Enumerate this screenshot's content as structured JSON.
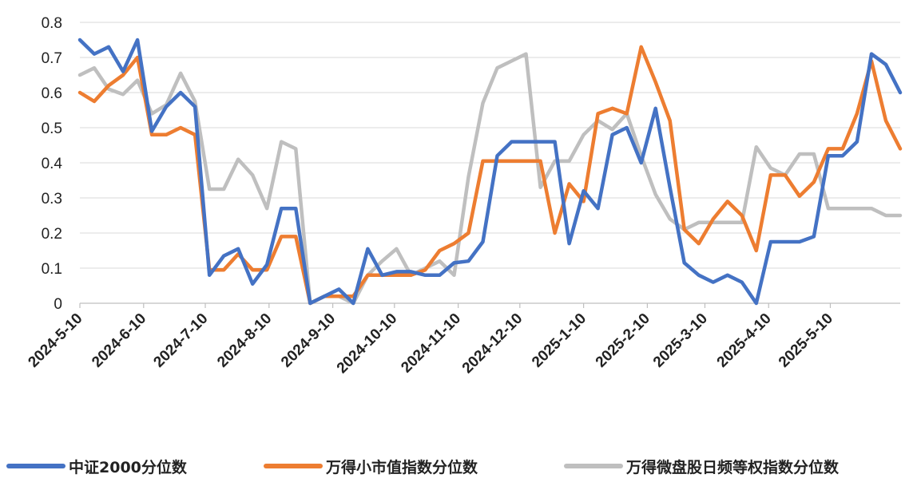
{
  "chart_data": {
    "type": "line",
    "title": "",
    "xlabel": "",
    "ylabel": "",
    "ylim": [
      0,
      0.8
    ],
    "yticks": [
      "0",
      "0.1",
      "0.2",
      "0.3",
      "0.4",
      "0.5",
      "0.6",
      "0.7",
      "0.8"
    ],
    "xtick_labels": [
      "2024-5-10",
      "2024-6-10",
      "2024-7-10",
      "2024-8-10",
      "2024-9-10",
      "2024-10-10",
      "2024-11-10",
      "2024-12-10",
      "2025-1-10",
      "2025-2-10",
      "2025-3-10",
      "2025-4-10",
      "2025-5-10"
    ],
    "grid": true,
    "legend_position": "bottom",
    "x_start": "2024-5-10",
    "x_step_days": 7,
    "series": [
      {
        "name": "中证2000分位数",
        "color": "#4472C4",
        "values": [
          0.75,
          0.71,
          0.73,
          0.66,
          0.75,
          0.49,
          0.56,
          0.6,
          0.56,
          0.08,
          0.135,
          0.155,
          0.055,
          0.11,
          0.27,
          0.27,
          0.0,
          0.02,
          0.04,
          0.0,
          0.155,
          0.08,
          0.09,
          0.09,
          0.08,
          0.08,
          0.115,
          0.12,
          0.175,
          0.42,
          0.46,
          0.46,
          0.46,
          0.46,
          0.17,
          0.32,
          0.27,
          0.48,
          0.5,
          0.4,
          0.555,
          0.33,
          0.115,
          0.08,
          0.06,
          0.08,
          0.06,
          0.0,
          0.175,
          0.175,
          0.175,
          0.19,
          0.42,
          0.42,
          0.46,
          0.71,
          0.68,
          0.6
        ]
      },
      {
        "name": "万得小市值指数分位数",
        "color": "#ED7D31",
        "values": [
          0.6,
          0.575,
          0.62,
          0.65,
          0.7,
          0.48,
          0.48,
          0.5,
          0.48,
          0.095,
          0.095,
          0.14,
          0.095,
          0.095,
          0.19,
          0.19,
          0.0,
          0.02,
          0.02,
          0.02,
          0.08,
          0.08,
          0.08,
          0.08,
          0.095,
          0.15,
          0.17,
          0.2,
          0.405,
          0.405,
          0.405,
          0.405,
          0.405,
          0.2,
          0.34,
          0.29,
          0.54,
          0.555,
          0.54,
          0.73,
          0.63,
          0.52,
          0.21,
          0.17,
          0.24,
          0.29,
          0.25,
          0.15,
          0.365,
          0.365,
          0.305,
          0.345,
          0.44,
          0.44,
          0.54,
          0.69,
          0.52,
          0.44
        ]
      },
      {
        "name": "万得微盘股日频等权指数分位数",
        "color": "#BFBFBF",
        "values": [
          0.65,
          0.67,
          0.61,
          0.595,
          0.635,
          0.54,
          0.565,
          0.655,
          0.575,
          0.325,
          0.325,
          0.41,
          0.365,
          0.27,
          0.46,
          0.44,
          0.0,
          0.02,
          0.02,
          0.0,
          0.08,
          0.12,
          0.155,
          0.08,
          0.1,
          0.12,
          0.08,
          0.36,
          0.57,
          0.67,
          0.69,
          0.71,
          0.33,
          0.405,
          0.405,
          0.48,
          0.52,
          0.495,
          0.54,
          0.42,
          0.31,
          0.24,
          0.21,
          0.23,
          0.23,
          0.23,
          0.23,
          0.445,
          0.385,
          0.365,
          0.425,
          0.425,
          0.27,
          0.27,
          0.27,
          0.27,
          0.25,
          0.25
        ]
      }
    ]
  }
}
